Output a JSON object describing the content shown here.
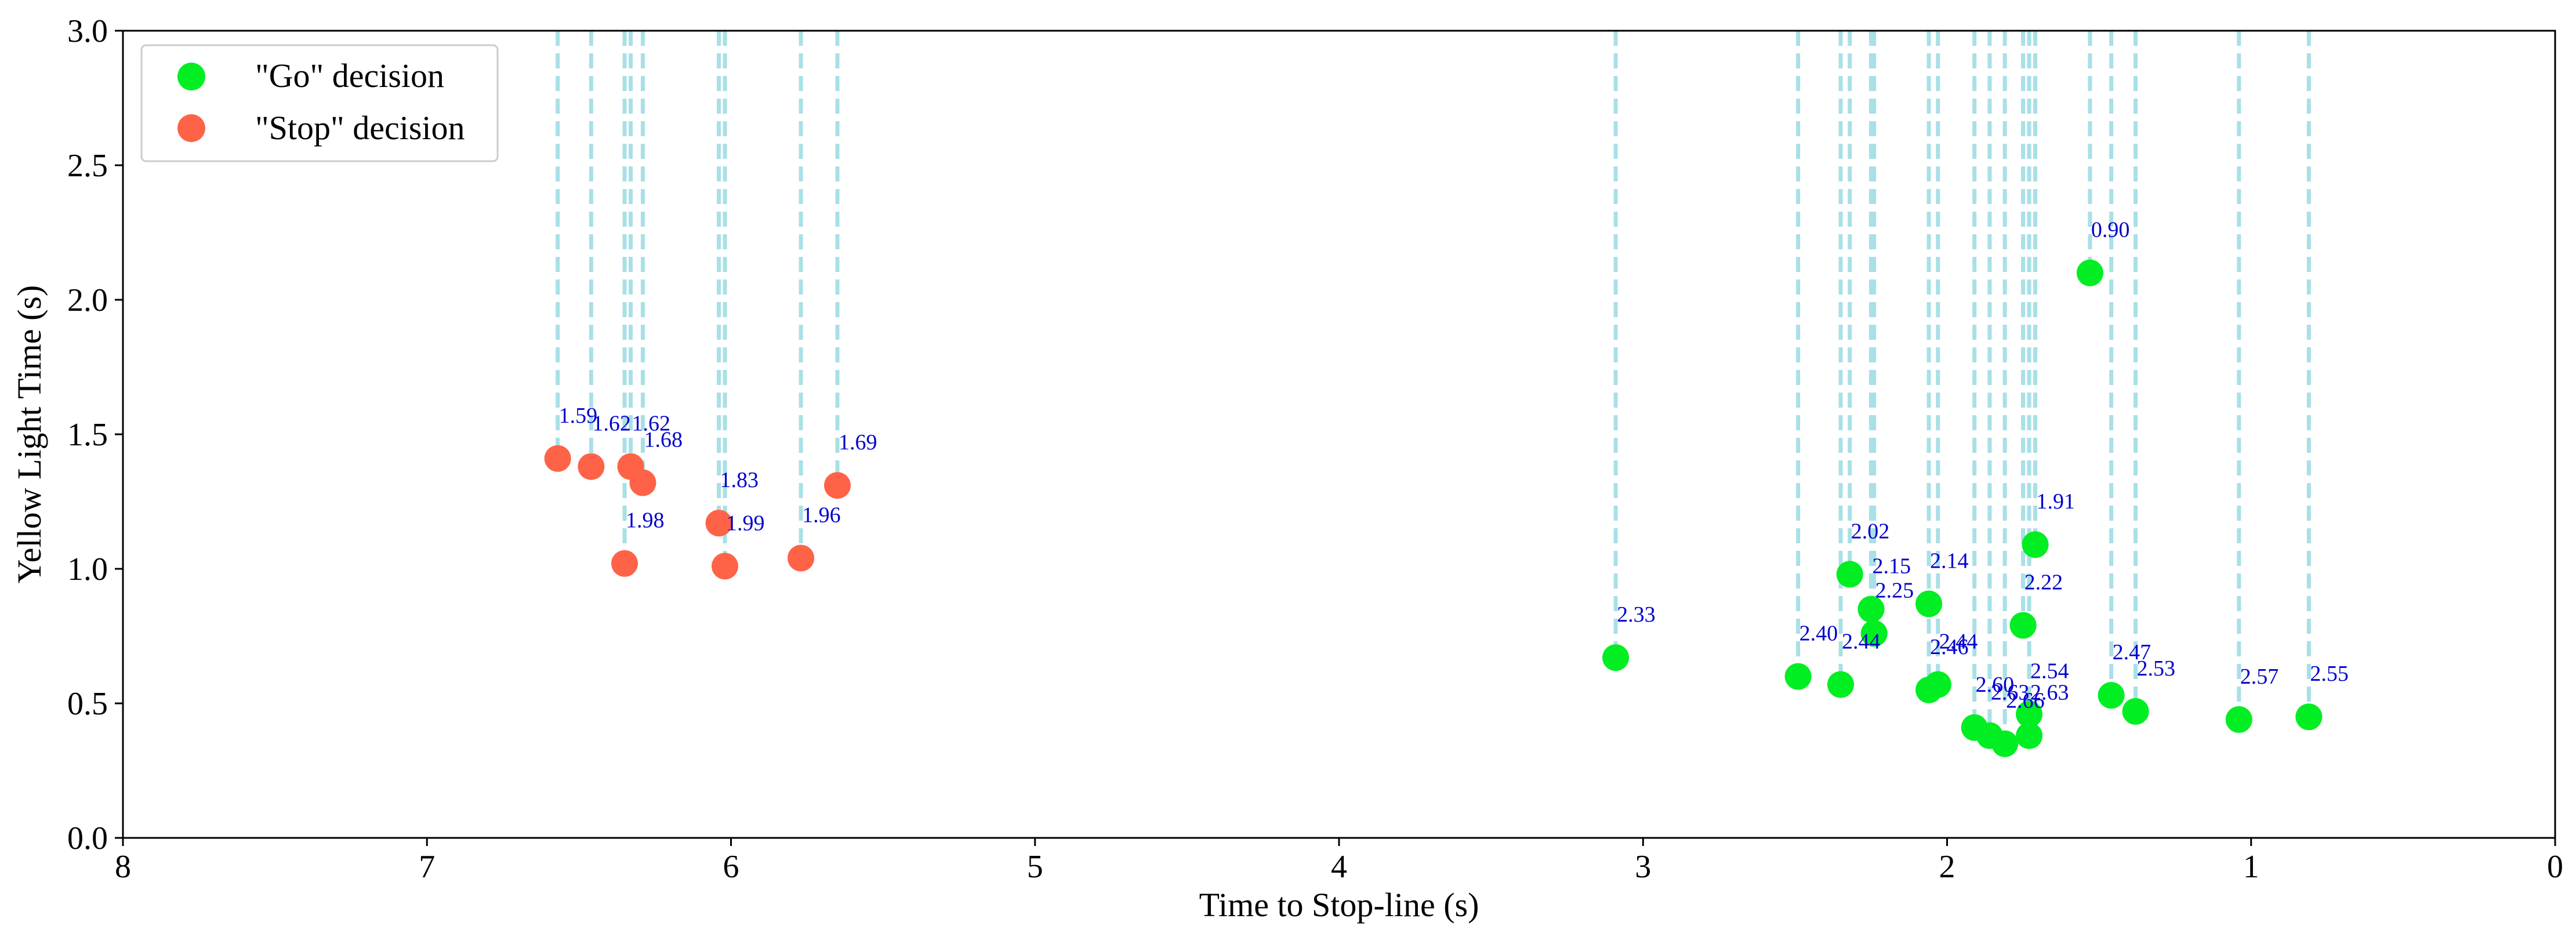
{
  "chart_data": {
    "type": "scatter",
    "title": "",
    "xlabel": "Time to Stop-line (s)",
    "ylabel": "Yellow Light Time (s)",
    "xlim": [
      8,
      0
    ],
    "ylim": [
      0,
      3
    ],
    "x_ticks": [
      "8",
      "7",
      "6",
      "5",
      "4",
      "3",
      "2",
      "1",
      "0"
    ],
    "y_ticks": [
      "0.0",
      "0.5",
      "1.0",
      "1.5",
      "2.0",
      "2.5",
      "3.0"
    ],
    "grid": false,
    "legend_position": "top-left",
    "series": [
      {
        "name": "\"Go\" decision",
        "color": "#00ee22",
        "points": [
          {
            "x": 3.09,
            "y": 0.67,
            "label": "2.33"
          },
          {
            "x": 2.49,
            "y": 0.6,
            "label": "2.40"
          },
          {
            "x": 2.35,
            "y": 0.57,
            "label": "2.44"
          },
          {
            "x": 2.32,
            "y": 0.98,
            "label": "2.02"
          },
          {
            "x": 2.25,
            "y": 0.85,
            "label": "2.15"
          },
          {
            "x": 2.24,
            "y": 0.76,
            "label": "2.25"
          },
          {
            "x": 2.06,
            "y": 0.87,
            "label": "2.14"
          },
          {
            "x": 2.06,
            "y": 0.55,
            "label": "2.46"
          },
          {
            "x": 2.03,
            "y": 0.57,
            "label": "2.44"
          },
          {
            "x": 1.91,
            "y": 0.41,
            "label": "2.60"
          },
          {
            "x": 1.86,
            "y": 0.38,
            "label": "2.63"
          },
          {
            "x": 1.81,
            "y": 0.35,
            "label": "2.66"
          },
          {
            "x": 1.75,
            "y": 0.79,
            "label": "2.22"
          },
          {
            "x": 1.73,
            "y": 0.46,
            "label": "2.54"
          },
          {
            "x": 1.73,
            "y": 0.38,
            "label": "2.63"
          },
          {
            "x": 1.71,
            "y": 1.09,
            "label": "1.91"
          },
          {
            "x": 1.53,
            "y": 2.1,
            "label": "0.90"
          },
          {
            "x": 1.46,
            "y": 0.53,
            "label": "2.47"
          },
          {
            "x": 1.38,
            "y": 0.47,
            "label": "2.53"
          },
          {
            "x": 1.04,
            "y": 0.44,
            "label": "2.57"
          },
          {
            "x": 0.81,
            "y": 0.45,
            "label": "2.55"
          }
        ]
      },
      {
        "name": "\"Stop\" decision",
        "color": "#ff6347",
        "points": [
          {
            "x": 6.57,
            "y": 1.41,
            "label": "1.59"
          },
          {
            "x": 6.46,
            "y": 1.38,
            "label": "1.62"
          },
          {
            "x": 6.33,
            "y": 1.38,
            "label": "1.62"
          },
          {
            "x": 6.29,
            "y": 1.32,
            "label": "1.68"
          },
          {
            "x": 6.35,
            "y": 1.02,
            "label": "1.98"
          },
          {
            "x": 6.04,
            "y": 1.17,
            "label": "1.83"
          },
          {
            "x": 6.02,
            "y": 1.01,
            "label": "1.99"
          },
          {
            "x": 5.77,
            "y": 1.04,
            "label": "1.96"
          },
          {
            "x": 5.65,
            "y": 1.31,
            "label": "1.69"
          }
        ]
      }
    ]
  },
  "style": {
    "guide_line_color": "#a8e0e6",
    "label_color": "#0000cc",
    "axis_color": "#000000"
  }
}
